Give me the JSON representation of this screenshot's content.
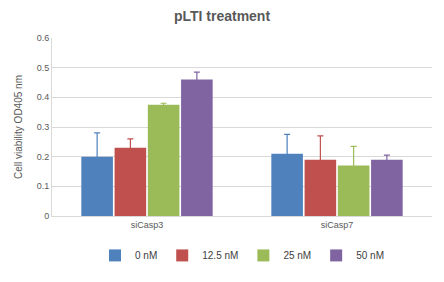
{
  "chart_data": {
    "type": "bar",
    "title": "pLTI treatment",
    "y_label": "Cell viability OD405 nm",
    "categories": [
      "siCasp3",
      "siCasp7"
    ],
    "series": [
      {
        "name": "0 nM",
        "color": "#4F81BD",
        "values": [
          0.2,
          0.21
        ],
        "errors": [
          0.08,
          0.065
        ]
      },
      {
        "name": "12.5 nM",
        "color": "#C0504D",
        "values": [
          0.23,
          0.19
        ],
        "errors": [
          0.03,
          0.08
        ]
      },
      {
        "name": "25 nM",
        "color": "#9BBB59",
        "values": [
          0.375,
          0.17
        ],
        "errors": [
          0.005,
          0.065
        ]
      },
      {
        "name": "50 nM",
        "color": "#8064A2",
        "values": [
          0.46,
          0.19
        ],
        "errors": [
          0.025,
          0.015
        ]
      }
    ],
    "ylim": [
      0,
      0.6
    ],
    "yticks": [
      0,
      0.1,
      0.2,
      0.3,
      0.4,
      0.5,
      0.6
    ],
    "grid": true,
    "legend": "bottom"
  }
}
